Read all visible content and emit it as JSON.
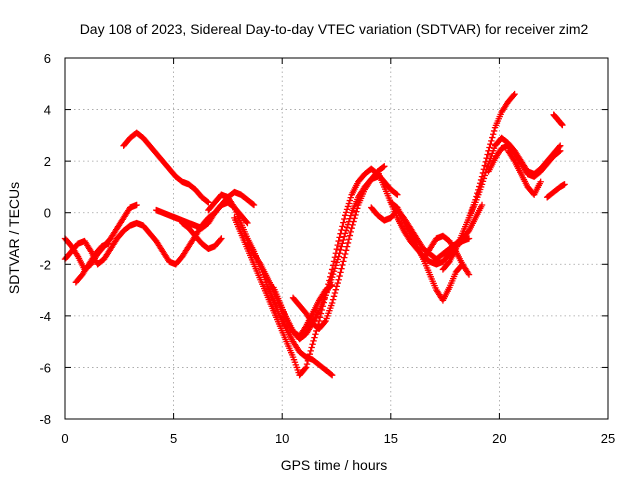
{
  "chart_data": {
    "type": "scatter",
    "title": "Day 108 of 2023, Sidereal Day-to-day VTEC variation (SDTVAR) for receiver zim2",
    "xlabel": "GPS time / hours",
    "ylabel": "SDTVAR / TECUs",
    "xlim": [
      0,
      25
    ],
    "ylim": [
      -8,
      6
    ],
    "xticks": [
      "0",
      "5",
      "10",
      "15",
      "20",
      "25"
    ],
    "yticks": [
      "-8",
      "-6",
      "-4",
      "-2",
      "0",
      "2",
      "4",
      "6"
    ],
    "grid": true,
    "marker": "+",
    "color": "#ff0000",
    "series": [
      {
        "x": [
          0.0,
          0.3,
          0.6,
          0.9,
          1.2,
          1.5,
          1.8,
          2.1,
          2.4,
          2.7,
          3.0,
          3.3
        ],
        "y": [
          -1.0,
          -1.3,
          -1.7,
          -2.2,
          -2.0,
          -1.6,
          -1.3,
          -1.0,
          -0.6,
          -0.2,
          0.2,
          0.3
        ]
      },
      {
        "x": [
          0.0,
          0.3,
          0.6,
          0.9,
          1.2,
          1.5,
          1.8,
          2.1,
          2.4,
          2.7,
          3.0,
          3.3,
          3.6,
          3.9,
          4.2,
          4.5,
          4.8,
          5.1,
          5.4,
          5.7,
          6.0,
          6.3,
          6.6,
          6.9,
          7.2,
          7.5,
          7.8,
          8.1,
          8.4
        ],
        "y": [
          -1.8,
          -1.5,
          -1.2,
          -1.1,
          -1.5,
          -2.0,
          -1.8,
          -1.4,
          -1.0,
          -0.7,
          -0.5,
          -0.4,
          -0.5,
          -0.8,
          -1.1,
          -1.5,
          -1.9,
          -2.0,
          -1.7,
          -1.3,
          -0.9,
          -0.5,
          -0.2,
          0.0,
          0.3,
          0.4,
          0.2,
          -0.1,
          -0.4
        ]
      },
      {
        "x": [
          0.5,
          0.8,
          1.1,
          1.4,
          1.7,
          2.0
        ],
        "y": [
          -2.7,
          -2.4,
          -2.0,
          -1.6,
          -1.3,
          -1.2
        ]
      },
      {
        "x": [
          2.7,
          3.0,
          3.3,
          3.6,
          3.9,
          4.2,
          4.5,
          4.8,
          5.1,
          5.4,
          5.7,
          6.0,
          6.3,
          6.6
        ],
        "y": [
          2.6,
          2.9,
          3.1,
          2.9,
          2.6,
          2.3,
          2.0,
          1.7,
          1.4,
          1.2,
          1.1,
          0.9,
          0.6,
          0.4
        ]
      },
      {
        "x": [
          4.2,
          4.5,
          4.8,
          5.1,
          5.4,
          5.7,
          6.0,
          6.3,
          6.6,
          6.9,
          7.2,
          7.5,
          7.8,
          8.1,
          8.4,
          8.7
        ],
        "y": [
          0.1,
          0.0,
          -0.1,
          -0.2,
          -0.3,
          -0.4,
          -0.5,
          -0.6,
          -0.4,
          0.0,
          0.3,
          0.6,
          0.8,
          0.7,
          0.5,
          0.3
        ]
      },
      {
        "x": [
          5.4,
          5.7,
          6.0,
          6.3,
          6.6,
          6.9,
          7.2
        ],
        "y": [
          -0.4,
          -0.6,
          -0.9,
          -1.2,
          -1.4,
          -1.3,
          -1.0
        ]
      },
      {
        "x": [
          6.6,
          6.9,
          7.2,
          7.5,
          7.8,
          8.1,
          8.4,
          8.7,
          9.0,
          9.3,
          9.6,
          9.9,
          10.2,
          10.5,
          10.8,
          11.1,
          11.4,
          11.7,
          12.0,
          12.3
        ],
        "y": [
          0.1,
          0.4,
          0.7,
          0.6,
          0.2,
          -0.4,
          -1.0,
          -1.5,
          -2.1,
          -2.8,
          -3.4,
          -4.0,
          -4.5,
          -5.0,
          -5.4,
          -5.6,
          -5.7,
          -5.9,
          -6.1,
          -6.3
        ]
      },
      {
        "x": [
          7.8,
          8.1,
          8.4,
          8.7,
          9.0,
          9.3,
          9.6,
          9.9,
          10.2,
          10.5,
          10.8,
          11.1,
          11.4,
          11.7,
          12.0,
          12.3,
          12.6,
          12.9,
          13.2,
          13.5,
          13.8,
          14.1,
          14.4,
          14.7,
          15.0,
          15.3
        ],
        "y": [
          -0.2,
          -0.8,
          -1.4,
          -2.0,
          -2.6,
          -3.2,
          -3.8,
          -4.4,
          -5.0,
          -5.6,
          -6.3,
          -6.0,
          -5.1,
          -4.2,
          -3.2,
          -2.2,
          -1.1,
          -0.1,
          0.7,
          1.2,
          1.5,
          1.7,
          1.5,
          1.2,
          0.9,
          0.7
        ]
      },
      {
        "x": [
          8.4,
          8.7,
          9.0,
          9.3,
          9.6,
          9.9,
          10.2,
          10.5,
          10.8,
          11.1,
          11.4,
          11.7,
          12.0,
          12.3,
          12.6,
          12.9,
          13.2,
          13.5,
          13.8,
          14.1,
          14.4
        ],
        "y": [
          -1.2,
          -1.6,
          -2.0,
          -2.5,
          -3.0,
          -3.6,
          -4.1,
          -4.6,
          -4.9,
          -4.7,
          -4.3,
          -3.8,
          -3.2,
          -2.5,
          -1.7,
          -0.8,
          0.0,
          0.6,
          1.0,
          1.3,
          1.4
        ]
      },
      {
        "x": [
          9.6,
          9.9,
          10.2,
          10.5,
          10.8,
          11.1,
          11.4,
          11.7,
          12.0,
          12.3
        ],
        "y": [
          -2.9,
          -3.5,
          -4.1,
          -4.6,
          -4.8,
          -4.4,
          -3.9,
          -3.4,
          -3.0,
          -2.8
        ]
      },
      {
        "x": [
          10.5,
          10.8,
          11.1,
          11.4,
          11.7,
          12.0,
          12.3,
          12.6,
          12.9,
          13.2,
          13.5,
          13.8,
          14.1,
          14.4,
          14.7
        ],
        "y": [
          -3.3,
          -3.6,
          -3.9,
          -4.3,
          -4.5,
          -4.2,
          -3.5,
          -2.6,
          -1.6,
          -0.6,
          0.3,
          0.9,
          1.3,
          1.6,
          1.8
        ]
      },
      {
        "x": [
          14.4,
          14.7,
          15.0,
          15.3,
          15.6,
          15.9,
          16.2,
          16.5,
          16.8,
          17.1,
          17.4,
          17.7,
          18.0,
          18.3,
          18.6
        ],
        "y": [
          1.6,
          1.0,
          0.4,
          -0.2,
          -0.7,
          -1.1,
          -1.4,
          -1.7,
          -1.9,
          -2.0,
          -1.9,
          -1.6,
          -1.3,
          -1.1,
          -1.0
        ]
      },
      {
        "x": [
          14.1,
          14.4,
          14.7,
          15.0,
          15.3,
          15.6,
          15.9,
          16.2,
          16.5,
          16.8,
          17.1,
          17.4,
          17.7,
          18.0,
          18.3,
          18.6,
          18.9,
          19.2
        ],
        "y": [
          0.2,
          -0.1,
          -0.3,
          -0.2,
          0.1,
          -0.2,
          -0.6,
          -1.0,
          -1.4,
          -1.6,
          -1.8,
          -1.6,
          -1.4,
          -1.2,
          -1.0,
          -0.7,
          -0.2,
          0.3
        ]
      },
      {
        "x": [
          15.0,
          15.3,
          15.6,
          15.9,
          16.2,
          16.5,
          16.8,
          17.1,
          17.4,
          17.7,
          18.0,
          18.3
        ],
        "y": [
          0.4,
          0.2,
          -0.3,
          -0.8,
          -1.3,
          -1.8,
          -2.4,
          -3.0,
          -3.4,
          -2.9,
          -2.3,
          -2.0
        ]
      },
      {
        "x": [
          16.5,
          16.8,
          17.1,
          17.4,
          17.7,
          18.0,
          18.3,
          18.6
        ],
        "y": [
          -1.8,
          -1.4,
          -1.0,
          -0.9,
          -1.1,
          -1.5,
          -2.0,
          -2.4
        ]
      },
      {
        "x": [
          17.4,
          17.7,
          18.0,
          18.3,
          18.6,
          18.9,
          19.2,
          19.5,
          19.8,
          20.1,
          20.4,
          20.7,
          21.0,
          21.3,
          21.6,
          21.9,
          22.2,
          22.5,
          22.8
        ],
        "y": [
          -2.2,
          -1.9,
          -1.4,
          -0.8,
          -0.2,
          0.4,
          1.1,
          1.9,
          2.6,
          2.9,
          2.7,
          2.4,
          2.0,
          1.6,
          1.5,
          1.7,
          2.0,
          2.3,
          2.6
        ]
      },
      {
        "x": [
          18.6,
          18.9,
          19.2,
          19.5,
          19.8,
          20.1,
          20.4,
          20.7
        ],
        "y": [
          -0.2,
          0.5,
          1.4,
          2.4,
          3.3,
          3.9,
          4.3,
          4.6
        ]
      },
      {
        "x": [
          19.5,
          19.8,
          20.1,
          20.4,
          20.7,
          21.0,
          21.3,
          21.6,
          21.9,
          22.2,
          22.5,
          22.8
        ],
        "y": [
          1.6,
          2.1,
          2.5,
          2.6,
          2.3,
          1.9,
          1.5,
          1.4,
          1.6,
          1.9,
          2.2,
          2.4
        ]
      },
      {
        "x": [
          20.4,
          20.7,
          21.0,
          21.3,
          21.6,
          21.9
        ],
        "y": [
          2.4,
          2.0,
          1.5,
          1.0,
          0.7,
          1.2
        ]
      },
      {
        "x": [
          22.5,
          22.7,
          22.9
        ],
        "y": [
          3.8,
          3.6,
          3.4
        ]
      },
      {
        "x": [
          22.2,
          22.5,
          22.8,
          23.0
        ],
        "y": [
          0.6,
          0.8,
          1.0,
          1.1
        ]
      }
    ]
  }
}
